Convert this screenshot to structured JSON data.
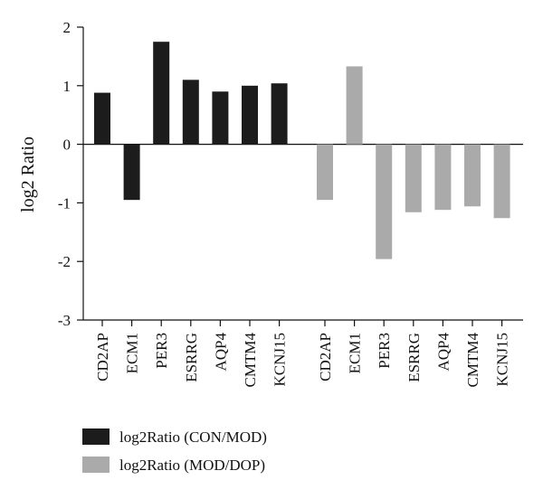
{
  "chart_data": {
    "type": "bar",
    "ylabel": "log2 Ratio",
    "ylim": [
      -3,
      2
    ],
    "yticks": [
      2,
      1,
      0,
      -1,
      -2,
      -3
    ],
    "grid": false,
    "legend_placement": "bottom-left",
    "groups": [
      {
        "series": "log2Ratio (CON/MOD)",
        "color": "#1c1c1c",
        "categories": [
          "CD2AP",
          "ECM1",
          "PER3",
          "ESRRG",
          "AQP4",
          "CMTM4",
          "KCNJ15"
        ],
        "values": [
          0.88,
          -0.95,
          1.75,
          1.1,
          0.9,
          1.0,
          1.04
        ]
      },
      {
        "series": "log2Ratio (MOD/DOP)",
        "color": "#aaaaaa",
        "categories": [
          "CD2AP",
          "ECM1",
          "PER3",
          "ESRRG",
          "AQP4",
          "CMTM4",
          "KCNJ15"
        ],
        "values": [
          -0.95,
          1.33,
          -1.96,
          -1.16,
          -1.12,
          -1.06,
          -1.26
        ]
      }
    ],
    "legend": [
      {
        "label": "log2Ratio (CON/MOD)",
        "color": "#1c1c1c"
      },
      {
        "label": "log2Ratio (MOD/DOP)",
        "color": "#aaaaaa"
      }
    ]
  }
}
